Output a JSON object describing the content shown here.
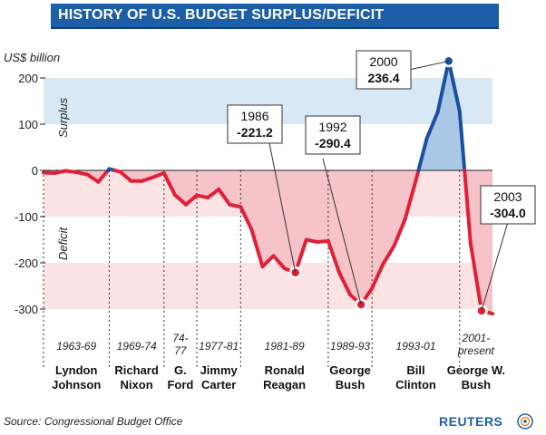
{
  "chart_data": {
    "type": "line",
    "title": "HISTORY OF  U.S. BUDGET SURPLUS/DEFICIT",
    "ylabel": "US$ billion",
    "ylim": [
      -300,
      236.4
    ],
    "xlim": [
      1963,
      2004
    ],
    "yticks": [
      {
        "value": 200,
        "label": "200"
      },
      {
        "value": 100,
        "label": "100"
      },
      {
        "value": 0,
        "label": "0"
      },
      {
        "value": -100,
        "label": "-100"
      },
      {
        "value": -200,
        "label": "-200"
      },
      {
        "value": -300,
        "label": "-300"
      }
    ],
    "zones": {
      "surplus": "Surplus",
      "deficit": "Deficit"
    },
    "series": [
      {
        "x": [
          1963,
          1964,
          1965,
          1966,
          1967,
          1968,
          1969,
          1970,
          1971,
          1972,
          1973,
          1974,
          1975,
          1976,
          1977,
          1978,
          1979,
          1980,
          1981,
          1982,
          1983,
          1984,
          1985,
          1986,
          1987,
          1988,
          1989,
          1990,
          1991,
          1992,
          1993,
          1994,
          1995,
          1996,
          1997,
          1998,
          1999,
          2000,
          2001,
          2002,
          2003,
          2004
        ],
        "y": [
          -5,
          -6,
          -1,
          -4,
          -9,
          -25,
          3,
          -3,
          -23,
          -23,
          -15,
          -6,
          -53,
          -74,
          -54,
          -59,
          -41,
          -74,
          -79,
          -128,
          -208,
          -185,
          -212,
          -221.2,
          -150,
          -155,
          -153,
          -221,
          -269,
          -290.4,
          -255,
          -203,
          -164,
          -107,
          -22,
          69,
          126,
          236.4,
          128,
          -158,
          -304.0,
          -310
        ]
      }
    ],
    "presidencies": [
      {
        "start": 1963,
        "end": 1969,
        "range": "1963-69",
        "name_line1": "Lyndon",
        "name_line2": "Johnson"
      },
      {
        "start": 1969,
        "end": 1974,
        "range": "1969-74",
        "name_line1": "Richard",
        "name_line2": "Nixon"
      },
      {
        "start": 1974,
        "end": 1977,
        "range_line1": "74-",
        "range_line2": "77",
        "name_line1": "G.",
        "name_line2": "Ford"
      },
      {
        "start": 1977,
        "end": 1981,
        "range": "1977-81",
        "name_line1": "Jimmy",
        "name_line2": "Carter"
      },
      {
        "start": 1981,
        "end": 1989,
        "range": "1981-89",
        "name_line1": "Ronald",
        "name_line2": "Reagan"
      },
      {
        "start": 1989,
        "end": 1993,
        "range": "1989-93",
        "name_line1": "George",
        "name_line2": "Bush"
      },
      {
        "start": 1993,
        "end": 2001,
        "range": "1993-01",
        "name_line1": "Bill",
        "name_line2": "Clinton"
      },
      {
        "start": 2001,
        "end": 2004,
        "range_line1": "2001-",
        "range_line2": "present",
        "name_line1": "George W.",
        "name_line2": "Bush"
      }
    ],
    "annotations": [
      {
        "year": "1986",
        "value": "-221.2",
        "x": 1986,
        "y": -221.2
      },
      {
        "year": "1992",
        "value": "-290.4",
        "x": 1992,
        "y": -290.4
      },
      {
        "year": "2000",
        "value": "236.4",
        "x": 2000,
        "y": 236.4
      },
      {
        "year": "2003",
        "value": "-304.0",
        "x": 2003,
        "y": -304.0
      }
    ]
  },
  "colors": {
    "deficit_line": "#e0203a",
    "deficit_fill": "#f6c4c8",
    "deficit_band": "#fbe3e4",
    "surplus_line": "#1d4fa0",
    "surplus_fill": "#a9c8e6",
    "surplus_band": "#d8e8f4",
    "title_bar": "#1d5fa6"
  },
  "footer": {
    "source": "Source: Congressional Budget Office",
    "brand": "REUTERS"
  }
}
